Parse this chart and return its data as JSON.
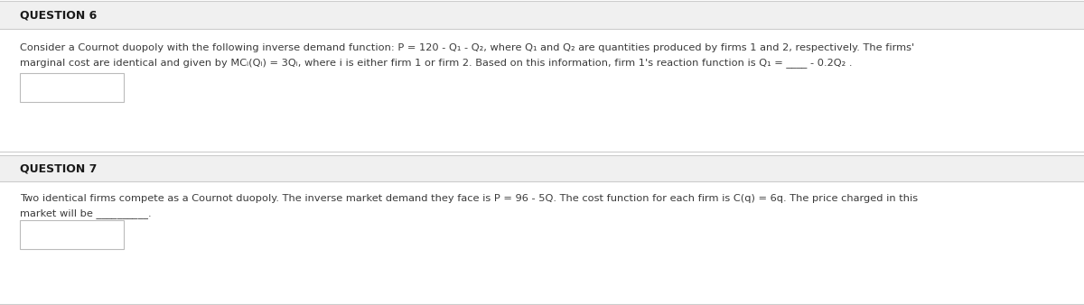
{
  "bg_color": "#ffffff",
  "q6_header": "QUESTION 6",
  "q6_line1": "Consider a Cournot duopoly with the following inverse demand function: P = 120 - Q₁ - Q₂, where Q₁ and Q₂ are quantities produced by firms 1 and 2, respectively. The firms'",
  "q6_line2": "marginal cost are identical and given by MCᵢ(Qᵢ) = 3Qᵢ, where i is either firm 1 or firm 2. Based on this information, firm 1's reaction function is Q₁ = ____ - 0.2Q₂ .",
  "q7_header": "QUESTION 7",
  "q7_line1": "Two identical firms compete as a Cournot duopoly. The inverse market demand they face is P = 96 - 5Q. The cost function for each firm is C(q) = 6q. The price charged in this",
  "q7_line2": "market will be __________.",
  "answer_box_color": "#ffffff",
  "answer_box_border": "#bbbbbb",
  "text_color": "#3a3a3a",
  "header_text_color": "#1a1a1a",
  "font_size_header": 9.0,
  "font_size_body": 8.2,
  "separator_color": "#cccccc",
  "header_bg": "#f0f0f0"
}
